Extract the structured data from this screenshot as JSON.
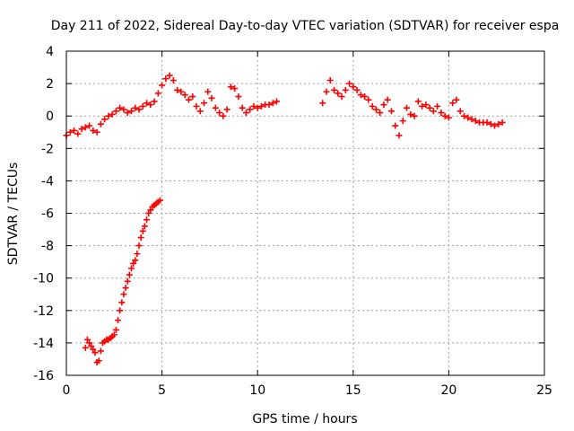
{
  "chart_data": {
    "type": "scatter",
    "title": "Day 211 of 2022, Sidereal Day-to-day VTEC variation (SDTVAR) for receiver espa",
    "xlabel": "GPS time / hours",
    "ylabel": "SDTVAR / TECUs",
    "xlim": [
      0,
      25
    ],
    "ylim": [
      -16,
      4
    ],
    "xticks": [
      0,
      5,
      10,
      15,
      20,
      25
    ],
    "yticks": [
      -16,
      -14,
      -12,
      -10,
      -8,
      -6,
      -4,
      -2,
      0,
      2,
      4
    ],
    "grid": true,
    "marker": "+",
    "color": "#ff0000",
    "series": [
      {
        "name": "SDTVAR",
        "x": [
          0.0,
          0.2,
          0.4,
          0.6,
          0.8,
          1.0,
          1.2,
          1.4,
          1.6,
          1.8,
          2.0,
          2.2,
          2.4,
          2.6,
          2.8,
          3.0,
          3.2,
          3.4,
          3.6,
          3.8,
          4.0,
          4.2,
          4.4,
          4.6,
          4.8,
          5.0,
          5.2,
          5.4,
          5.6,
          5.8,
          6.0,
          6.2,
          6.4,
          6.6,
          6.8,
          7.0,
          7.2,
          7.4,
          7.6,
          7.8,
          8.0,
          8.2,
          8.4,
          8.6,
          8.8,
          9.0,
          9.2,
          9.4,
          9.6,
          9.8,
          10.0,
          10.2,
          10.4,
          10.6,
          10.8,
          11.0,
          1.0,
          1.1,
          1.2,
          1.3,
          1.4,
          1.5,
          1.6,
          1.7,
          1.8,
          1.9,
          2.0,
          2.1,
          2.2,
          2.3,
          2.4,
          2.5,
          2.6,
          2.7,
          2.8,
          2.9,
          3.0,
          3.1,
          3.2,
          3.3,
          3.4,
          3.5,
          3.6,
          3.7,
          3.8,
          3.9,
          4.0,
          4.1,
          4.2,
          4.3,
          4.4,
          4.5,
          4.6,
          4.7,
          4.8,
          4.9,
          13.4,
          13.6,
          13.8,
          14.0,
          14.2,
          14.4,
          14.6,
          14.8,
          15.0,
          15.2,
          15.4,
          15.6,
          15.8,
          16.0,
          16.2,
          16.4,
          16.6,
          16.8,
          17.0,
          17.2,
          17.4,
          17.6,
          17.8,
          18.0,
          18.2,
          18.4,
          18.6,
          18.8,
          19.0,
          19.2,
          19.4,
          19.6,
          19.8,
          20.0,
          20.2,
          20.4,
          20.6,
          20.8,
          21.0,
          21.2,
          21.4,
          21.6,
          21.8,
          22.0,
          22.2,
          22.4,
          22.6,
          22.8
        ],
        "y": [
          -1.2,
          -1.0,
          -0.9,
          -1.1,
          -0.8,
          -0.7,
          -0.6,
          -0.9,
          -1.0,
          -0.5,
          -0.2,
          0.0,
          0.1,
          0.3,
          0.5,
          0.4,
          0.2,
          0.3,
          0.5,
          0.4,
          0.6,
          0.8,
          0.7,
          0.9,
          1.4,
          1.9,
          2.3,
          2.5,
          2.2,
          1.6,
          1.5,
          1.3,
          1.0,
          1.2,
          0.6,
          0.3,
          0.8,
          1.5,
          1.1,
          0.5,
          0.2,
          0.0,
          0.4,
          1.8,
          1.7,
          1.2,
          0.5,
          0.2,
          0.4,
          0.6,
          0.5,
          0.6,
          0.7,
          0.7,
          0.8,
          0.9,
          -14.3,
          -13.8,
          -14.0,
          -14.2,
          -14.4,
          -14.6,
          -15.2,
          -15.1,
          -14.5,
          -14.0,
          -13.9,
          -13.8,
          -13.8,
          -13.7,
          -13.6,
          -13.5,
          -13.2,
          -12.6,
          -12.0,
          -11.5,
          -11.0,
          -10.6,
          -10.2,
          -9.8,
          -9.4,
          -9.1,
          -8.9,
          -8.5,
          -8.0,
          -7.5,
          -7.1,
          -6.8,
          -6.4,
          -6.0,
          -5.8,
          -5.6,
          -5.5,
          -5.4,
          -5.3,
          -5.2,
          0.8,
          1.5,
          2.2,
          1.6,
          1.4,
          1.2,
          1.6,
          2.0,
          1.8,
          1.6,
          1.3,
          1.2,
          1.0,
          0.6,
          0.4,
          0.2,
          0.7,
          1.0,
          0.3,
          -0.6,
          -1.2,
          -0.3,
          0.5,
          0.1,
          0.0,
          0.9,
          0.6,
          0.7,
          0.5,
          0.3,
          0.6,
          0.2,
          0.0,
          -0.1,
          0.8,
          1.0,
          0.3,
          0.0,
          -0.1,
          -0.2,
          -0.3,
          -0.4,
          -0.4,
          -0.4,
          -0.5,
          -0.6,
          -0.5,
          -0.4
        ]
      }
    ]
  }
}
